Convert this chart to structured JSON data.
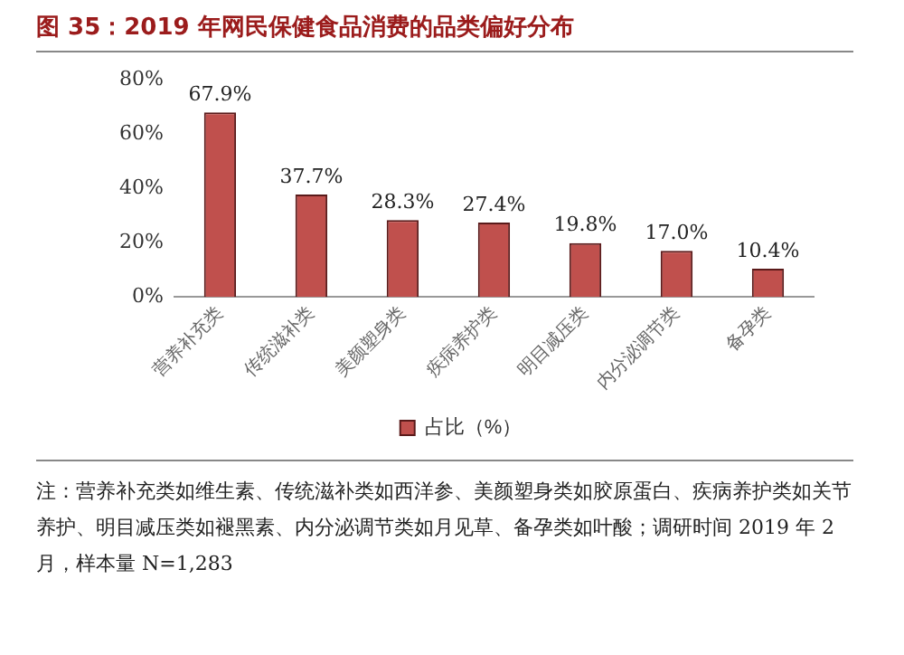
{
  "chart_data": {
    "type": "bar",
    "title": "图 35：2019 年网民保健食品消费的品类偏好分布",
    "categories": [
      "营养补充类",
      "传统滋补类",
      "美颜塑身类",
      "疾病养护类",
      "明目减压类",
      "内分泌调节类",
      "备孕类"
    ],
    "series": [
      {
        "name": "占比（%）",
        "color": "#c0504d",
        "values": [
          67.9,
          37.7,
          28.3,
          27.4,
          19.8,
          17.0,
          10.4
        ],
        "value_labels": [
          "67.9%",
          "37.7%",
          "28.3%",
          "27.4%",
          "19.8%",
          "17.0%",
          "10.4%"
        ]
      }
    ],
    "ylim": [
      0,
      80
    ],
    "yticks": [
      {
        "value": 0,
        "label": "0%"
      },
      {
        "value": 20,
        "label": "20%"
      },
      {
        "value": 40,
        "label": "40%"
      },
      {
        "value": 60,
        "label": "60%"
      },
      {
        "value": 80,
        "label": "80%"
      }
    ],
    "grid": false,
    "legend": "bottom",
    "annotations": [
      "注：营养补充类如维生素、传统滋补类如西洋参、美颜塑身类如胶原蛋白、疾病养护类如关节养护、明目减压类如褪黑素、内分泌调节类如月见草、备孕类如叶酸；调研时间 2019 年 2 月，样本量 N=1,283"
    ]
  }
}
